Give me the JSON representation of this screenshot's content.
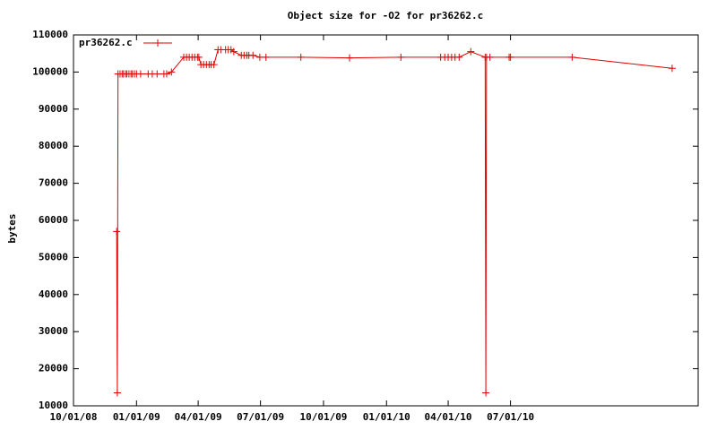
{
  "chart_data": {
    "type": "line",
    "title": "Object size for -O2 for pr36262.c",
    "ylabel": "bytes",
    "x": [
      "12/03/08",
      "12/04/08",
      "12/05/08",
      "12/08/08",
      "12/11/08",
      "12/13/08",
      "12/16/08",
      "12/18/08",
      "12/21/08",
      "12/24/08",
      "12/26/08",
      "12/29/08",
      "01/01/09",
      "01/07/09",
      "01/18/09",
      "01/24/09",
      "01/31/09",
      "02/10/09",
      "02/14/09",
      "02/21/09",
      "03/11/09",
      "03/15/09",
      "03/19/09",
      "03/23/09",
      "03/27/09",
      "03/31/09",
      "04/02/09",
      "04/05/09",
      "04/09/09",
      "04/13/09",
      "04/17/09",
      "04/20/09",
      "04/24/09",
      "04/30/09",
      "05/04/09",
      "05/11/09",
      "05/15/09",
      "05/19/09",
      "05/23/09",
      "06/03/09",
      "06/07/09",
      "06/11/09",
      "06/14/09",
      "06/20/09",
      "06/30/09",
      "07/09/09",
      "08/29/09",
      "11/08/09",
      "01/22/10",
      "03/21/10",
      "03/27/10",
      "04/01/10",
      "04/06/10",
      "04/11/10",
      "04/17/10",
      "05/04/10",
      "05/25/10",
      "05/26/10",
      "05/27/10",
      "06/01/10",
      "06/29/10",
      "07/01/10",
      "09/29/10",
      "02/22/11"
    ],
    "series": [
      {
        "name": "pr36262.c",
        "color": "#e00000",
        "values": [
          57000,
          13500,
          99500,
          99500,
          99500,
          99500,
          99500,
          99500,
          99500,
          99500,
          99500,
          99500,
          99500,
          99500,
          99500,
          99500,
          99500,
          99500,
          99500,
          100000,
          104000,
          104000,
          104000,
          104000,
          104000,
          104000,
          104000,
          102000,
          102000,
          102000,
          102000,
          102000,
          102000,
          106000,
          106000,
          106000,
          106000,
          106000,
          105500,
          104500,
          104500,
          104500,
          104500,
          104500,
          104000,
          104000,
          104000,
          103800,
          104000,
          104000,
          104000,
          104000,
          104000,
          104000,
          104000,
          105500,
          104000,
          13500,
          104000,
          104000,
          104000,
          104000,
          104000,
          101000
        ]
      }
    ],
    "xlim": [
      "10/01/08",
      "04/01/11"
    ],
    "xticks": [
      "10/01/08",
      "01/01/09",
      "04/01/09",
      "07/01/09",
      "10/01/09",
      "01/01/10",
      "04/01/10",
      "07/01/10"
    ],
    "ylim": [
      10000,
      110000
    ],
    "yticks": [
      10000,
      20000,
      30000,
      40000,
      50000,
      60000,
      70000,
      80000,
      90000,
      100000,
      110000
    ],
    "legend": "top-left"
  }
}
